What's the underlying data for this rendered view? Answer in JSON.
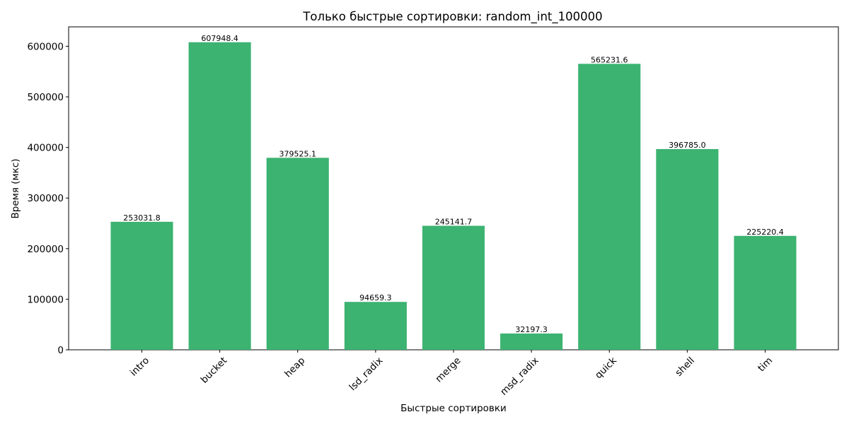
{
  "chart_data": {
    "type": "bar",
    "title": "Только быстрые сортировки: random_int_100000",
    "xlabel": "Быстрые сортировки",
    "ylabel": "Время (мкс)",
    "categories": [
      "intro",
      "bucket",
      "heap",
      "lsd_radix",
      "merge",
      "msd_radix",
      "quick",
      "shell",
      "tim"
    ],
    "values": [
      253031.8,
      607948.4,
      379525.1,
      94659.3,
      245141.7,
      32197.3,
      565231.6,
      396785.0,
      225220.4
    ],
    "value_labels": [
      "253031.8",
      "607948.4",
      "379525.1",
      "94659.3",
      "245141.7",
      "32197.3",
      "565231.6",
      "396785.0",
      "225220.4"
    ],
    "ylim": [
      0,
      638346
    ],
    "yticks": [
      0,
      100000,
      200000,
      300000,
      400000,
      500000,
      600000
    ],
    "ytick_labels": [
      "0",
      "100000",
      "200000",
      "300000",
      "400000",
      "500000",
      "600000"
    ],
    "bar_color": "#3cb371",
    "grid": false,
    "legend": "none",
    "xtick_rotation": 45
  }
}
